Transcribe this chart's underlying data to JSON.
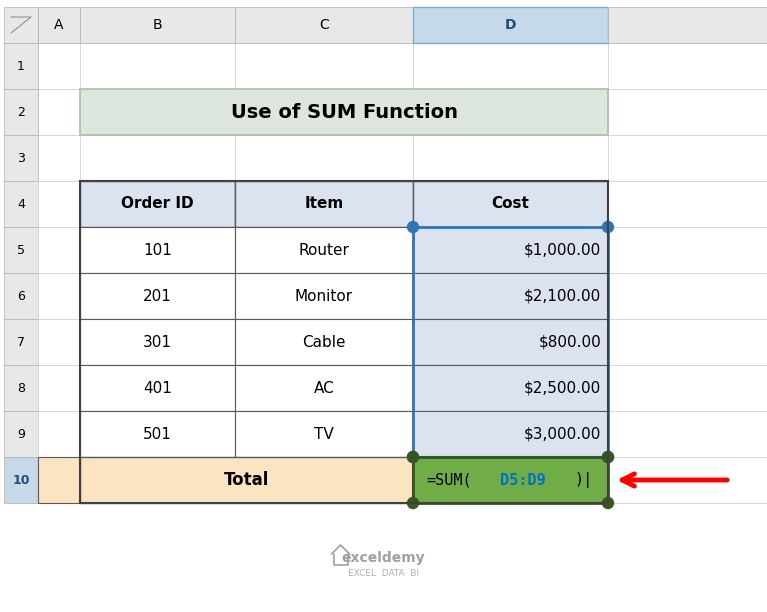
{
  "title": "Use of SUM Function",
  "title_bg": "#dce6dc",
  "title_border": "#a8bfa8",
  "col_headers": [
    "Order ID",
    "Item",
    "Cost"
  ],
  "rows": [
    [
      "101",
      "Router",
      "$1,000.00"
    ],
    [
      "201",
      "Monitor",
      "$2,100.00"
    ],
    [
      "301",
      "Cable",
      "$800.00"
    ],
    [
      "401",
      "AC",
      "$2,500.00"
    ],
    [
      "501",
      "TV",
      "$3,000.00"
    ]
  ],
  "total_label": "Total",
  "total_formula": "=SUM(D5:D9)",
  "formula_d5d9_color": "#0070c0",
  "header_bg": "#dce3f0",
  "data_bg": "#ffffff",
  "cost_col_bg": "#dce3f0",
  "total_row_bg": "#fce4c0",
  "total_cell_bg": "#70ad47",
  "selected_col_bg": "#dce3f0",
  "excel_col_header_bg": "#e8e8e8",
  "excel_selected_col_bg": "#c5d9e8",
  "grid_color": "#b0b0b0",
  "border_color": "#595959",
  "blue_border": "#2e75b6",
  "green_border": "#375623",
  "arrow_color": "#ff0000",
  "fig_bg": "#ffffff",
  "exceldemy_text": "exceldemy",
  "exceldemy_sub": "EXCEL  DATA  BI",
  "exceldemy_color": "#a0a0a0",
  "exceldemy_sub_color": "#b0b0b0"
}
